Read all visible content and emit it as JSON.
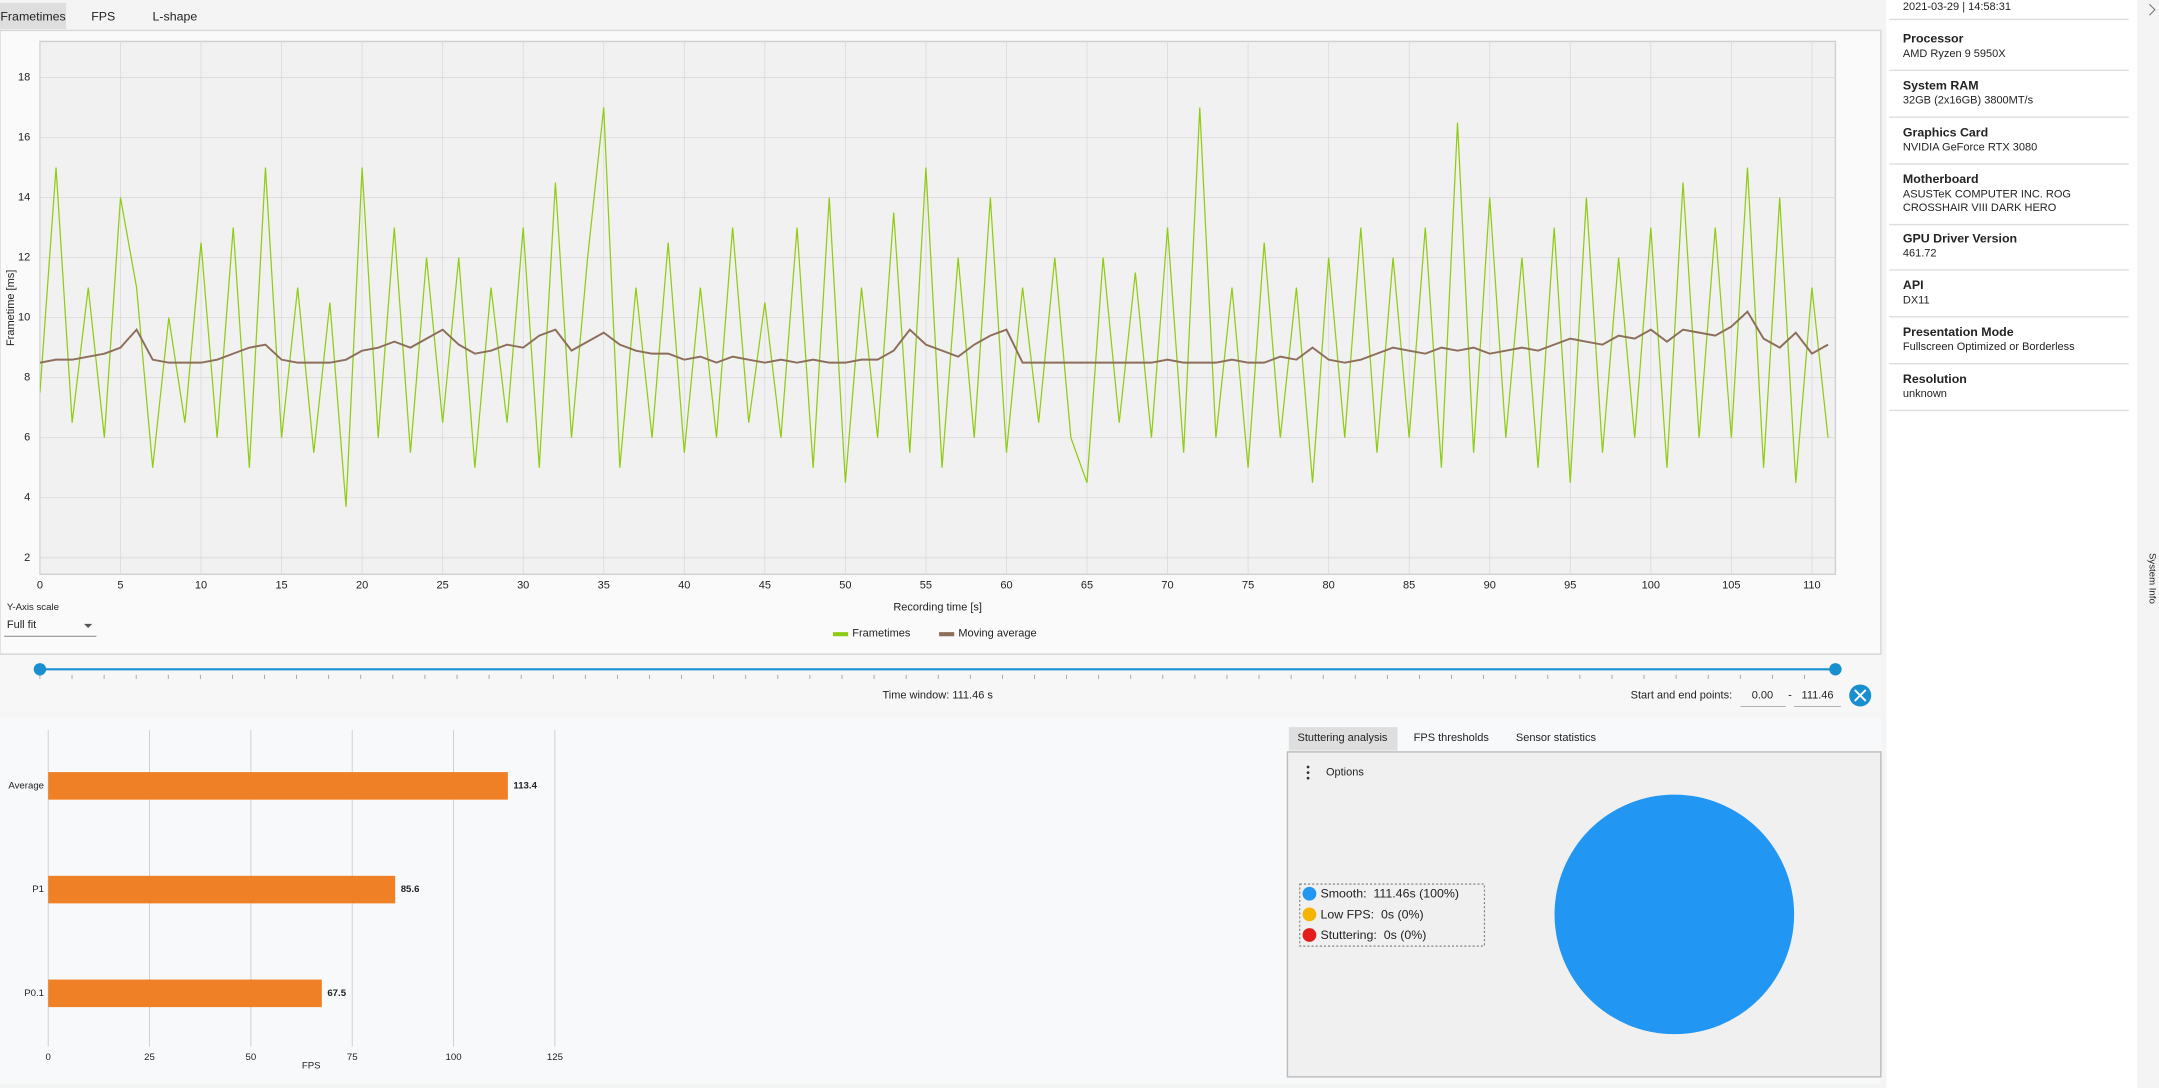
{
  "tabs": [
    "Frametimes",
    "FPS",
    "L-shape"
  ],
  "controls": {
    "y_axis_scale_label": "Y-Axis scale",
    "y_axis_scale": "Full fit",
    "time_window": "Time window:  111.46 s",
    "start_end_label": "Start and end points:",
    "start": "0.00",
    "range_separator": "-",
    "end": "111.46",
    "options": "Options"
  },
  "analysis_tabs": [
    "Stuttering analysis",
    "FPS thresholds",
    "Sensor statistics"
  ],
  "system_info": {
    "recorded": "2021-03-29  |  14:58:31",
    "side_label": "System Info",
    "items": [
      {
        "label": "Processor",
        "lines": [
          "AMD Ryzen 9 5950X"
        ]
      },
      {
        "label": "System RAM",
        "lines": [
          "32GB (2x16GB) 3800MT/s"
        ]
      },
      {
        "label": "Graphics Card",
        "lines": [
          "NVIDIA GeForce RTX 3080"
        ]
      },
      {
        "label": "Motherboard",
        "lines": [
          "ASUSTeK COMPUTER INC. ROG",
          "CROSSHAIR VIII DARK HERO"
        ]
      },
      {
        "label": "GPU Driver Version",
        "lines": [
          "461.72"
        ]
      },
      {
        "label": "API",
        "lines": [
          "DX11"
        ]
      },
      {
        "label": "Presentation Mode",
        "lines": [
          "Fullscreen Optimized or Borderless"
        ]
      },
      {
        "label": "Resolution",
        "lines": [
          "unknown"
        ]
      }
    ]
  },
  "chart_data": [
    {
      "type": "line",
      "xlabel": "Recording time [s]",
      "ylabel": "Frametime [ms]",
      "xlim": [
        0,
        111.46
      ],
      "ylim": [
        1.45,
        19.2
      ],
      "xticks": [
        0,
        5,
        10,
        15,
        20,
        25,
        30,
        35,
        40,
        45,
        50,
        55,
        60,
        65,
        70,
        75,
        80,
        85,
        90,
        95,
        100,
        105,
        110
      ],
      "yticks": [
        2,
        4,
        6,
        8,
        10,
        12,
        14,
        16,
        18
      ],
      "grid": true,
      "x": [
        0,
        1,
        2,
        3,
        4,
        5,
        6,
        7,
        8,
        9,
        10,
        11,
        12,
        13,
        14,
        15,
        16,
        17,
        18,
        19,
        20,
        21,
        22,
        23,
        24,
        25,
        26,
        27,
        28,
        29,
        30,
        31,
        32,
        33,
        34,
        35,
        36,
        37,
        38,
        39,
        40,
        41,
        42,
        43,
        44,
        45,
        46,
        47,
        48,
        49,
        50,
        51,
        52,
        53,
        54,
        55,
        56,
        57,
        58,
        59,
        60,
        61,
        62,
        63,
        64,
        65,
        66,
        67,
        68,
        69,
        70,
        71,
        72,
        73,
        74,
        75,
        76,
        77,
        78,
        79,
        80,
        81,
        82,
        83,
        84,
        85,
        86,
        87,
        88,
        89,
        90,
        91,
        92,
        93,
        94,
        95,
        96,
        97,
        98,
        99,
        100,
        101,
        102,
        103,
        104,
        105,
        106,
        107,
        108,
        109,
        110,
        111
      ],
      "series": [
        {
          "name": "Frametimes",
          "color": "#8fcc14",
          "values": [
            7.5,
            15,
            6.5,
            11,
            6,
            14,
            11,
            5,
            10,
            6.5,
            12.5,
            6,
            13,
            5,
            15,
            6,
            11,
            5.5,
            10.5,
            3.7,
            15,
            6,
            13,
            5.5,
            12,
            6.5,
            12,
            5,
            11,
            6.5,
            13,
            5,
            14.5,
            6,
            12,
            17,
            5,
            11,
            6,
            12.5,
            5.5,
            11,
            6,
            13,
            6.5,
            10.5,
            6,
            13,
            5,
            14,
            4.5,
            11,
            6,
            13.5,
            5.5,
            15,
            5,
            12,
            6,
            14,
            5.5,
            11,
            6.5,
            12,
            6,
            4.5,
            12,
            6.5,
            11.5,
            6,
            13,
            5.5,
            17,
            6,
            11,
            5,
            12.5,
            6,
            11,
            4.5,
            12,
            6,
            13,
            5.5,
            12,
            6,
            13,
            5,
            16.5,
            5.5,
            14,
            6,
            12,
            5,
            13,
            4.5,
            14,
            5.5,
            12,
            6,
            13,
            5,
            14.5,
            6,
            13,
            6,
            15,
            5,
            14,
            4.5,
            11,
            6
          ]
        },
        {
          "name": "Moving average",
          "color": "#8c6e5a",
          "values": [
            8.5,
            8.6,
            8.6,
            8.7,
            8.8,
            9.0,
            9.6,
            8.6,
            8.5,
            8.5,
            8.5,
            8.6,
            8.8,
            9.0,
            9.1,
            8.6,
            8.5,
            8.5,
            8.5,
            8.6,
            8.9,
            9.0,
            9.2,
            9.0,
            9.3,
            9.6,
            9.1,
            8.8,
            8.9,
            9.1,
            9.0,
            9.4,
            9.6,
            8.9,
            9.2,
            9.5,
            9.1,
            8.9,
            8.8,
            8.8,
            8.6,
            8.7,
            8.5,
            8.7,
            8.6,
            8.5,
            8.6,
            8.5,
            8.6,
            8.5,
            8.5,
            8.6,
            8.6,
            8.9,
            9.6,
            9.1,
            8.9,
            8.7,
            9.1,
            9.4,
            9.6,
            8.5,
            8.5,
            8.5,
            8.5,
            8.5,
            8.5,
            8.5,
            8.5,
            8.5,
            8.6,
            8.5,
            8.5,
            8.5,
            8.6,
            8.5,
            8.5,
            8.7,
            8.6,
            9.0,
            8.6,
            8.5,
            8.6,
            8.8,
            9.0,
            8.9,
            8.8,
            9.0,
            8.9,
            9.0,
            8.8,
            8.9,
            9.0,
            8.9,
            9.1,
            9.3,
            9.2,
            9.1,
            9.4,
            9.3,
            9.6,
            9.2,
            9.6,
            9.5,
            9.4,
            9.7,
            10.2,
            9.3,
            9.0,
            9.5,
            8.8,
            9.1
          ]
        }
      ]
    },
    {
      "type": "bar",
      "orientation": "horizontal",
      "xlabel": "FPS",
      "categories": [
        "Average",
        "P1",
        "P0.1"
      ],
      "values": [
        113.4,
        85.6,
        67.5
      ],
      "color": "#f08025",
      "xlim": [
        0,
        125
      ],
      "xticks": [
        0,
        25,
        50,
        75,
        100,
        125
      ],
      "grid": true
    },
    {
      "type": "pie",
      "categories": [
        "Smooth:",
        "Low FPS:",
        "Stuttering:"
      ],
      "values": [
        100,
        0,
        0
      ],
      "value_labels": [
        "111.46s (100%)",
        "0s (0%)",
        "0s (0%)"
      ],
      "colors": [
        "#2196f3",
        "#f5b400",
        "#e51c1c"
      ]
    }
  ]
}
